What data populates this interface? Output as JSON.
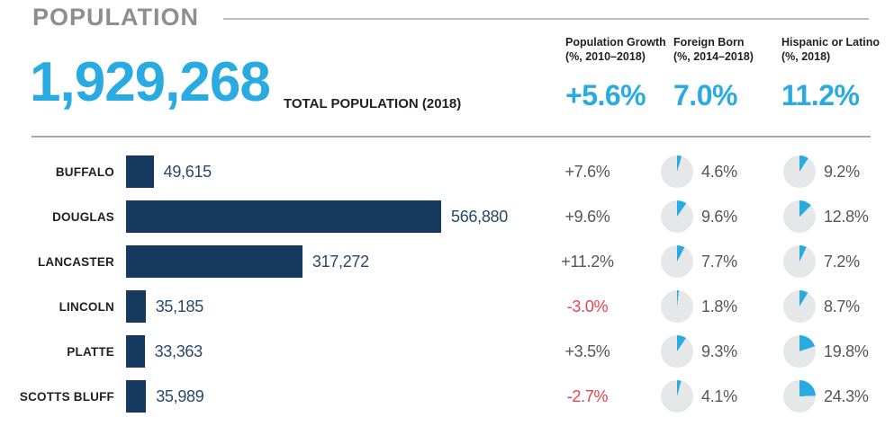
{
  "header": {
    "title": "POPULATION",
    "total_value": "1,929,268",
    "total_label": "TOTAL POPULATION (2018)",
    "stats": [
      {
        "label_line1": "Population Growth",
        "label_line2": "(%, 2010–2018)",
        "value": "+5.6%"
      },
      {
        "label_line1": "Foreign Born",
        "label_line2": "(%, 2014–2018)",
        "value": "7.0%"
      },
      {
        "label_line1": "Hispanic or Latino",
        "label_line2": "(%, 2018)",
        "value": "11.2%"
      }
    ]
  },
  "colors": {
    "accent_cyan": "#29ABE2",
    "bar_navy": "#163A5F",
    "bar_value_text": "#28486C",
    "muted_text": "#55565A",
    "negative_red": "#E8414B",
    "pie_background": "#E6E7E8",
    "title_gray": "#8C8E90",
    "rule_gray": "#BCBEC0",
    "separator_gray": "#A7A9AC"
  },
  "chart_data": {
    "type": "bar",
    "orientation": "horizontal",
    "title": "POPULATION",
    "categories": [
      "BUFFALO",
      "DOUGLAS",
      "LANCASTER",
      "LINCOLN",
      "PLATTE",
      "SCOTTS BLUFF"
    ],
    "xlim": [
      0,
      566880
    ],
    "grid": false,
    "legend_position": "none",
    "series": [
      {
        "name": "Total Population (2018)",
        "type": "bar",
        "values": [
          49615,
          566880,
          317272,
          35185,
          33363,
          35989
        ],
        "labels": [
          "49,615",
          "566,880",
          "317,272",
          "35,185",
          "33,363",
          "35,989"
        ]
      },
      {
        "name": "Population Growth (%, 2010–2018)",
        "type": "text",
        "values": [
          7.6,
          9.6,
          11.2,
          -3.0,
          3.5,
          -2.7
        ],
        "labels": [
          "+7.6%",
          "+9.6%",
          "+11.2%",
          "-3.0%",
          "+3.5%",
          "-2.7%"
        ]
      },
      {
        "name": "Foreign Born (%, 2014–2018)",
        "type": "pie",
        "values": [
          4.6,
          9.6,
          7.7,
          1.8,
          9.3,
          4.1
        ],
        "labels": [
          "4.6%",
          "9.6%",
          "7.7%",
          "1.8%",
          "9.3%",
          "4.1%"
        ]
      },
      {
        "name": "Hispanic or Latino (%, 2018)",
        "type": "pie",
        "values": [
          9.2,
          12.8,
          7.2,
          8.7,
          19.8,
          24.3
        ],
        "labels": [
          "9.2%",
          "12.8%",
          "7.2%",
          "8.7%",
          "19.8%",
          "24.3%"
        ]
      }
    ],
    "totals_row": {
      "total_population_2018": 1929268,
      "population_growth_pct": 5.6,
      "foreign_born_pct": 7.0,
      "hispanic_or_latino_pct": 11.2
    }
  }
}
